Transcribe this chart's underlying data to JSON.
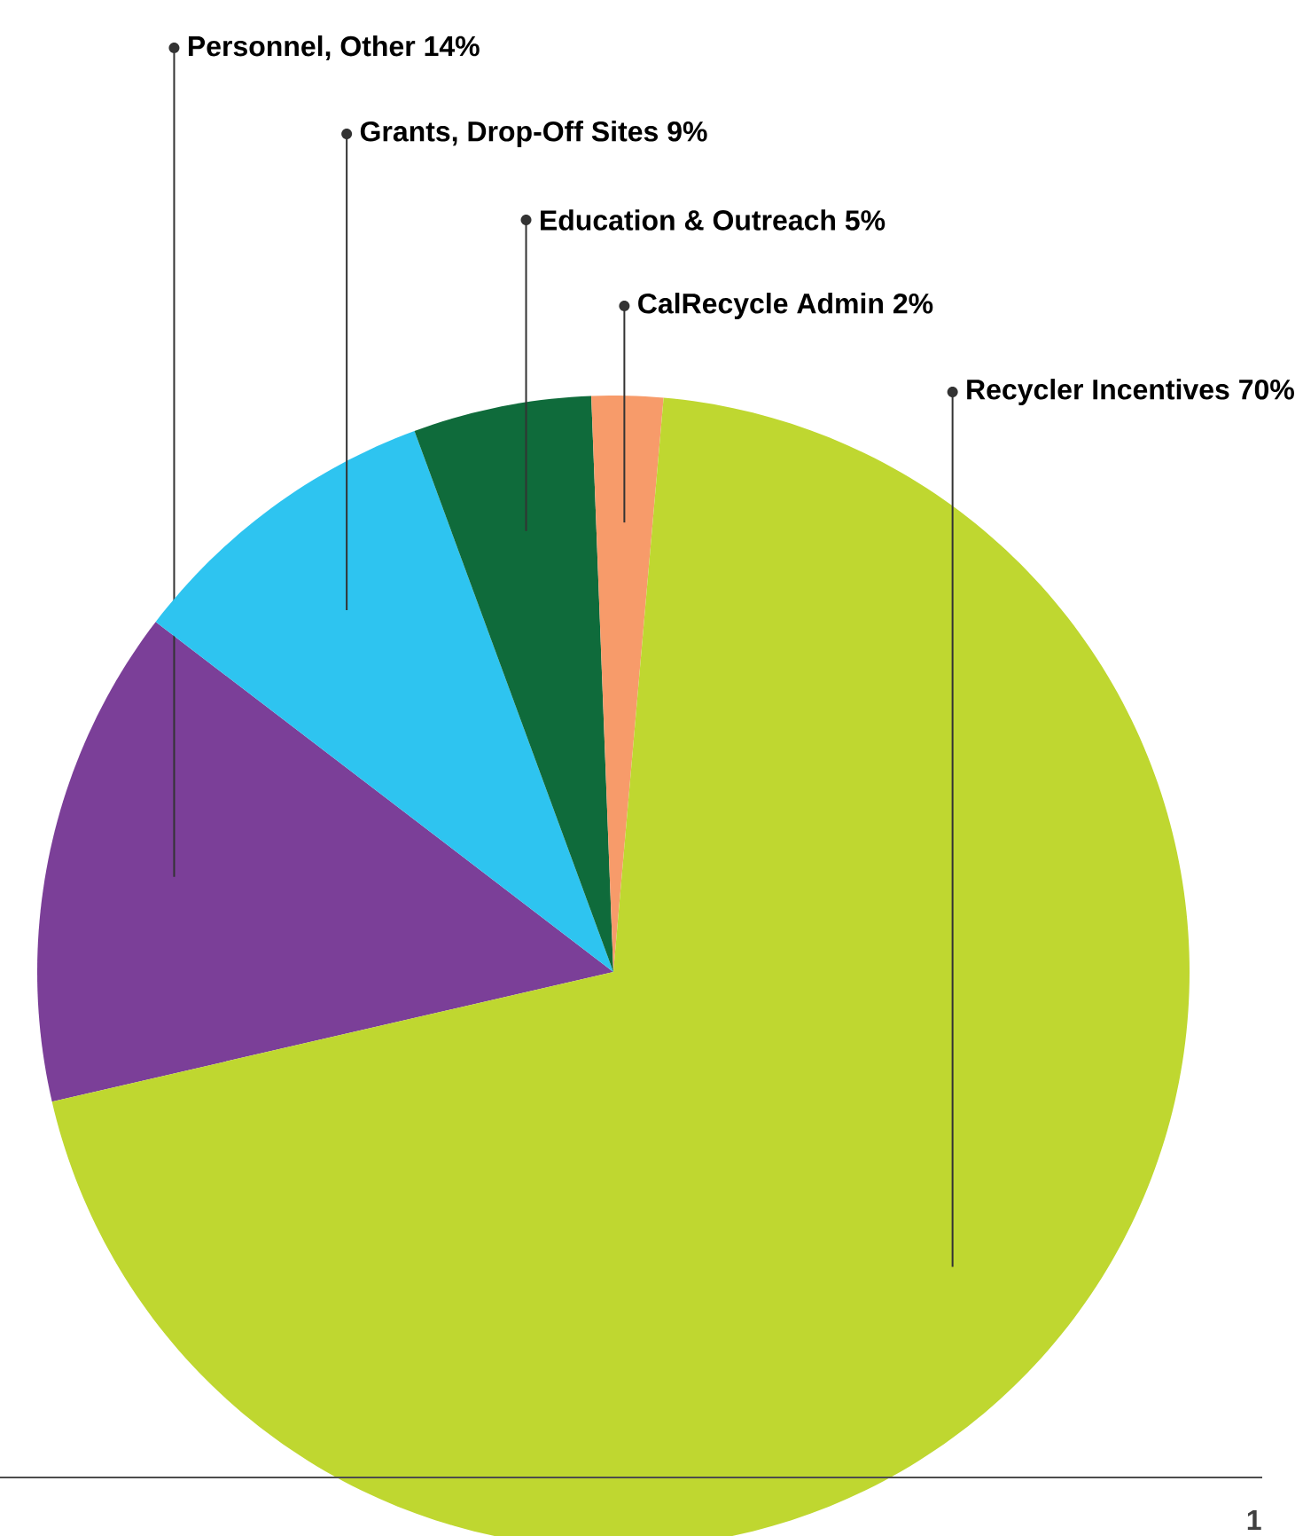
{
  "chart_data": {
    "type": "pie",
    "categories": [
      "Personnel, Other",
      "Grants, Drop-Off Sites",
      "Education & Outreach",
      "CalRecycle Admin",
      "Recycler Incentives"
    ],
    "values": [
      14,
      9,
      5,
      2,
      70
    ],
    "value_labels": [
      "14%",
      "9%",
      "5%",
      "2%",
      "70%"
    ],
    "colors": [
      "#7b3f98",
      "#2ec4f0",
      "#0f6b3b",
      "#f79b6a",
      "#bfd730"
    ],
    "annotations": [
      "1"
    ]
  }
}
